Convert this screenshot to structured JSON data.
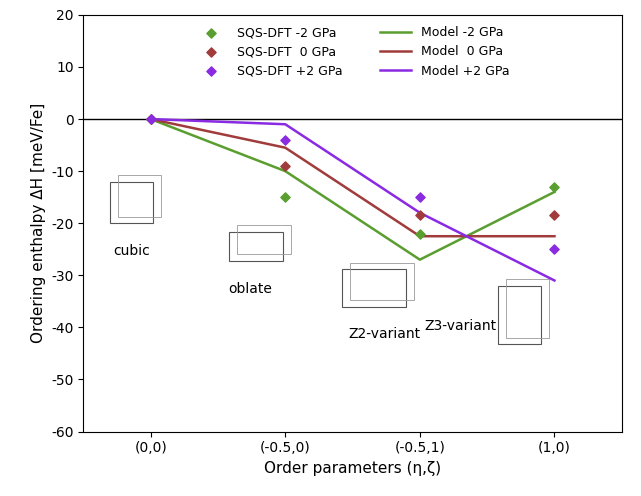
{
  "chart_data": {
    "type": "line",
    "x_label": "Order parameters (η,ζ)",
    "y_label": "Ordering enthalpy ΔH [meV/Fe]",
    "categories": [
      "(0,0)",
      "(-0.5,0)",
      "(-0.5,1)",
      "(1,0)"
    ],
    "series": [
      {
        "name": "SQS-DFT -2 GPa",
        "type": "scatter",
        "marker": "diamond",
        "color": "#5a9e2f",
        "values": [
          0,
          -15,
          -22,
          -13
        ]
      },
      {
        "name": "SQS-DFT  0 GPa",
        "type": "scatter",
        "marker": "diamond",
        "color": "#a03c3c",
        "values": [
          0,
          -9,
          -18.5,
          -18.5
        ]
      },
      {
        "name": "SQS-DFT +2 GPa",
        "type": "scatter",
        "marker": "diamond",
        "color": "#8a2be2",
        "values": [
          0,
          -4,
          -15,
          -25
        ]
      },
      {
        "name": "Model -2 GPa",
        "type": "line",
        "line_style": "solid",
        "color": "#5a9e2f",
        "values": [
          0,
          -10,
          -27,
          -14
        ]
      },
      {
        "name": "Model  0 GPa",
        "type": "line",
        "line_style": "solid",
        "color": "#a03c3c",
        "values": [
          0,
          -5.5,
          -22.5,
          -22.5
        ]
      },
      {
        "name": "Model +2 GPa",
        "type": "line",
        "line_style": "solid",
        "color": "#8a2be2",
        "values": [
          0,
          -1,
          -18,
          -31
        ]
      }
    ],
    "annotations": [
      "cubic",
      "oblate",
      "Z2-variant",
      "Z3-variant"
    ],
    "ylim": [
      -60,
      20
    ],
    "yticks": [
      -60,
      -50,
      -40,
      -30,
      -20,
      -10,
      0,
      10,
      20
    ],
    "legend": "upper center",
    "grid": false
  }
}
